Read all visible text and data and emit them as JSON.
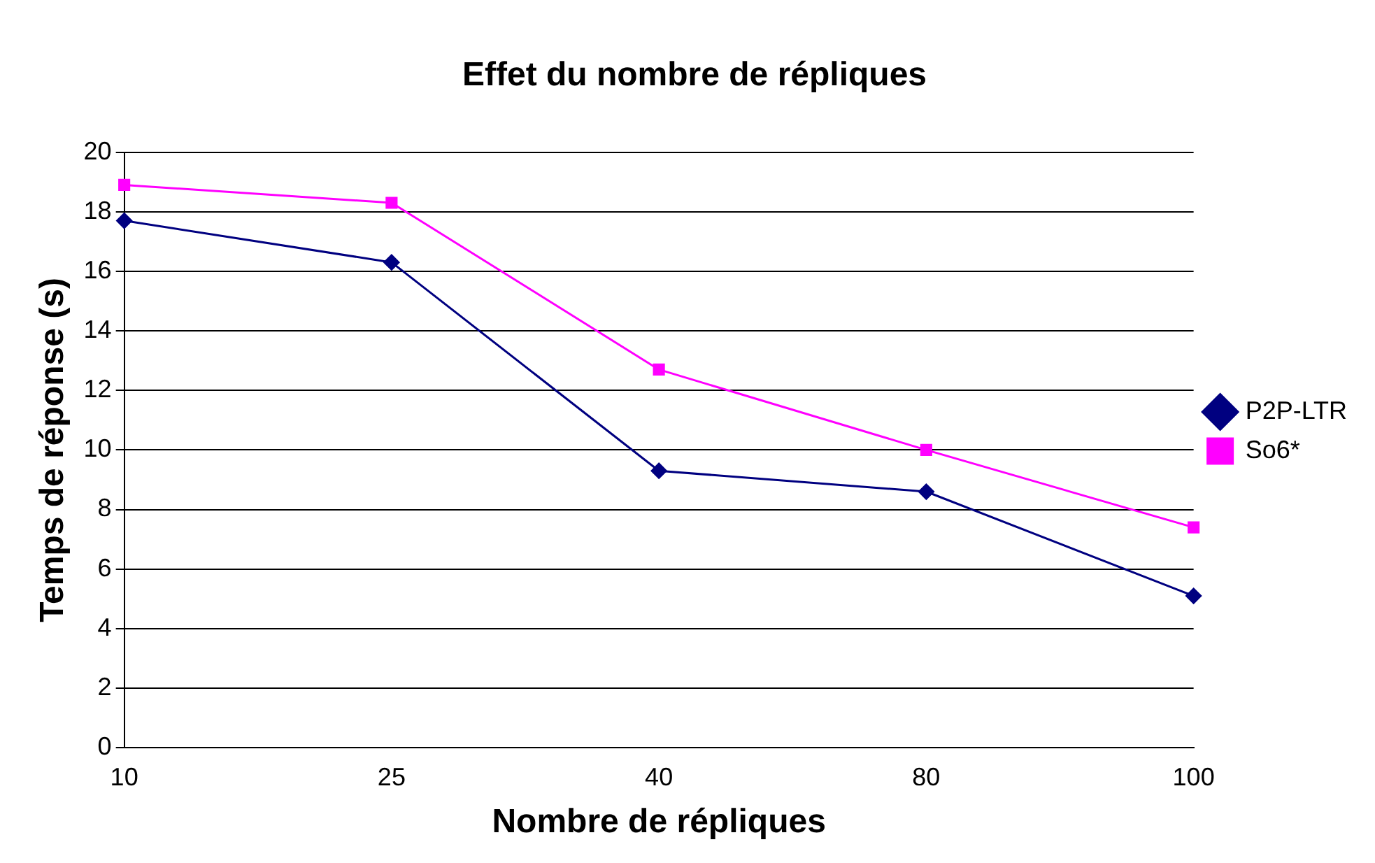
{
  "chart_data": {
    "type": "line",
    "title": "Effet du nombre de répliques",
    "xlabel": "Nombre de répliques",
    "ylabel": "Temps de réponse (s)",
    "categories": [
      "10",
      "25",
      "40",
      "80",
      "100"
    ],
    "series": [
      {
        "name": "P2P-LTR",
        "color": "#000080",
        "marker": "diamond",
        "values": [
          17.7,
          16.3,
          9.3,
          8.6,
          5.1
        ]
      },
      {
        "name": "So6*",
        "color": "#ff00ff",
        "marker": "square",
        "values": [
          18.9,
          18.3,
          12.7,
          10.0,
          7.4
        ]
      }
    ],
    "ylim": [
      0,
      20
    ],
    "yticks": [
      0,
      2,
      4,
      6,
      8,
      10,
      12,
      14,
      16,
      18,
      20
    ],
    "grid": "y",
    "legend": "right",
    "line_style": "solid"
  }
}
